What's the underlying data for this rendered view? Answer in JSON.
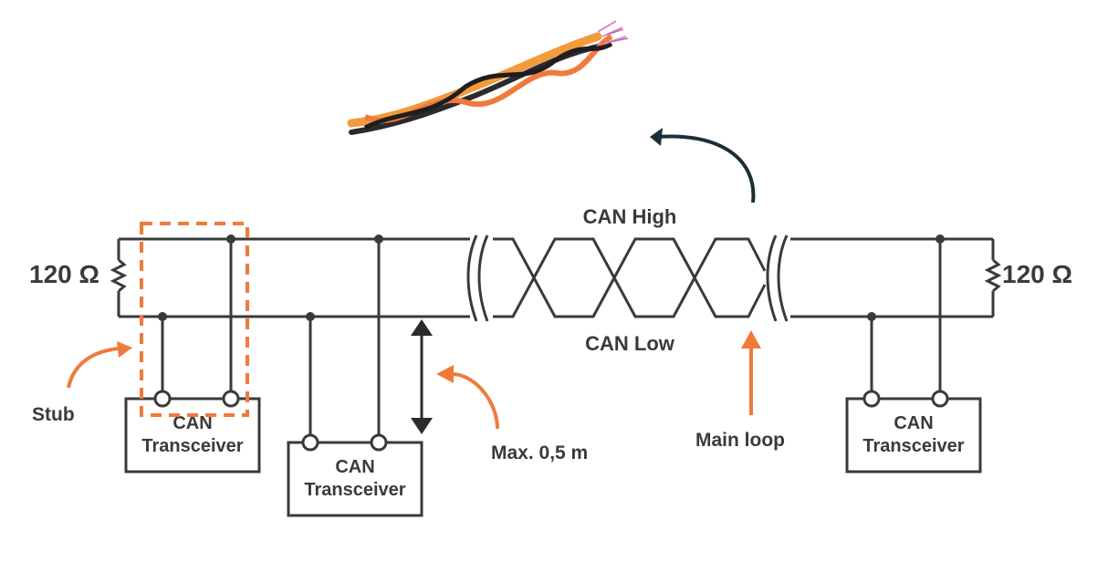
{
  "diagram": {
    "can_high_label": "CAN High",
    "can_low_label": "CAN Low",
    "resistor_left_label": "120 Ω",
    "resistor_right_label": "120 Ω",
    "stub_label": "Stub",
    "max_length_label": "Max. 0,5 m",
    "main_loop_label": "Main loop",
    "transceivers": [
      {
        "line1": "CAN",
        "line2": "Transceiver"
      },
      {
        "line1": "CAN",
        "line2": "Transceiver"
      },
      {
        "line1": "CAN",
        "line2": "Transceiver"
      }
    ],
    "colors": {
      "wire": "#3a3a3a",
      "accent": "#f07a3c",
      "arrow_dark": "#1a2f38"
    },
    "icons": {
      "cable_image": "twisted-pair-cable"
    }
  }
}
